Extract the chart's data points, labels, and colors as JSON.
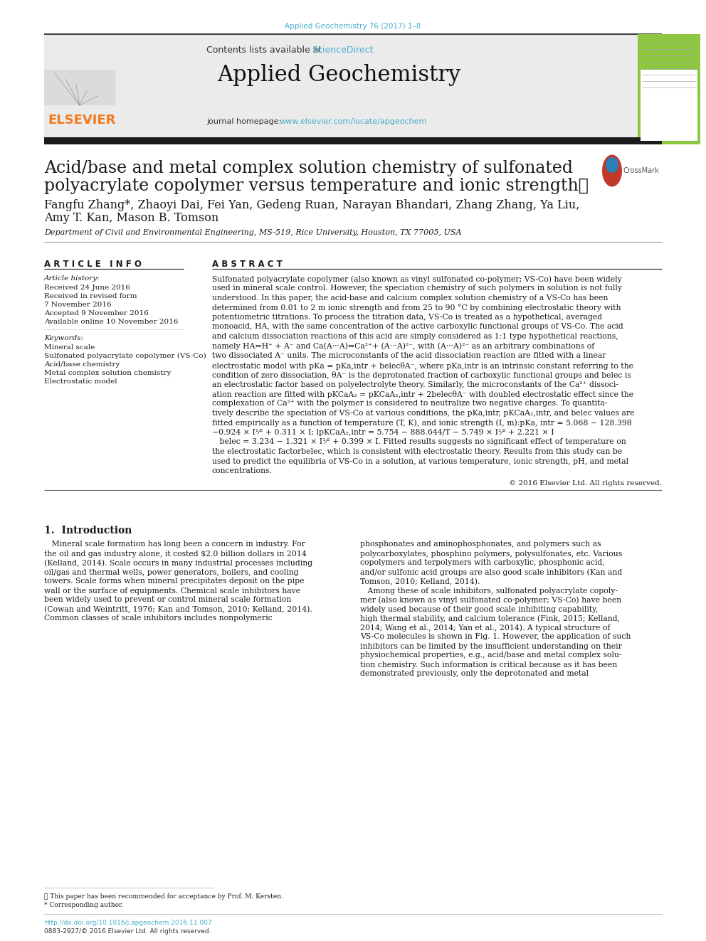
{
  "page_bg": "#ffffff",
  "top_citation": "Applied Geochemistry 76 (2017) 1–8",
  "top_citation_color": "#4AADCF",
  "journal_name": "Applied Geochemistry",
  "science_direct_color": "#4AADCF",
  "elsevier_orange": "#F47920",
  "header_bg": "#EBEBEB",
  "dark_bar": "#1A1A1A",
  "green_bar": "#8DC63F",
  "paper_title_line1": "Acid/base and metal complex solution chemistry of sulfonated",
  "paper_title_line2": "polyacrylate copolymer versus temperature and ionic strength★",
  "authors_line1": "Fangfu Zhang*, Zhaoyi Dai, Fei Yan, Gedeng Ruan, Narayan Bhandari, Zhang Zhang, Ya Liu,",
  "authors_line2": "Amy T. Kan, Mason B. Tomson",
  "affiliation": "Department of Civil and Environmental Engineering, MS-519, Rice University, Houston, TX 77005, USA",
  "article_info_title": "A R T I C L E   I N F O",
  "abstract_title": "A B S T R A C T",
  "article_history_title": "Article history:",
  "article_history": [
    "Received 24 June 2016",
    "Received in revised form",
    "7 November 2016",
    "Accepted 9 November 2016",
    "Available online 10 November 2016"
  ],
  "keywords_title": "Keywords:",
  "keywords": [
    "Mineral scale",
    "Sulfonated polyacrylate copolymer (VS-Co)",
    "Acid/base chemistry",
    "Metal complex solution chemistry",
    "Electrostatic model"
  ],
  "abstract_lines": [
    "Sulfonated polyacrylate copolymer (also known as vinyl sulfonated co-polymer; VS-Co) have been widely",
    "used in mineral scale control. However, the speciation chemistry of such polymers in solution is not fully",
    "understood. In this paper, the acid-base and calcium complex solution chemistry of a VS-Co has been",
    "determined from 0.01 to 2 m ionic strength and from 25 to 90 °C by combining electrostatic theory with",
    "potentiometric titrations. To process the titration data, VS-Co is treated as a hypothetical, averaged",
    "monoacid, HA, with the same concentration of the active carboxylic functional groups of VS-Co. The acid",
    "and calcium dissociation reactions of this acid are simply considered as 1:1 type hypothetical reactions,",
    "namely HA⇔H⁺ + A⁻ and Ca(A···A)⇔Ca²⁺+ (A···A)²⁻, with (A···A)²⁻ as an arbitrary combinations of",
    "two dissociated A⁻ units. The microconstants of the acid dissociation reaction are fitted with a linear",
    "electrostatic model with pKa = pKa,intr + belecθA⁻, where pKa,intr is an intrinsic constant referring to the",
    "condition of zero dissociation, θA⁻ is the deprotonated fraction of carboxylic functional groups and belec is",
    "an electrostatic factor based on polyelectrolyte theory. Similarly, the microconstants of the Ca²⁺ dissoci-",
    "ation reaction are fitted with pKCaA₂ = pKCaA₂,intr + 2belecθA⁻ with doubled electrostatic effect since the",
    "complexation of Ca²⁺ with the polymer is considered to neutralize two negative charges. To quantita-",
    "tively describe the speciation of VS-Co at various conditions, the pKa,intr, pKCaA₂,intr, and belec values are",
    "fitted empirically as a function of temperature (T, K), and ionic strength (I, m):pKa, intr = 5.068 − 128.398",
    "−0.924 × I¹⁄² + 0.311 × I; lpKCaA₂,intr = 5.754 − 888.644/T − 5.749 × I¹⁄² + 2.221 × I",
    "   belec = 3.234 − 1.321 × I¹⁄² + 0.399 × I. Fitted results suggests no significant effect of temperature on",
    "the electrostatic factorbelec, which is consistent with electrostatic theory. Results from this study can be",
    "used to predict the equilibria of VS-Co in a solution, at various temperature, ionic strength, pH, and metal",
    "concentrations."
  ],
  "copyright": "© 2016 Elsevier Ltd. All rights reserved.",
  "intro_title": "1.  Introduction",
  "intro_col1_lines": [
    "   Mineral scale formation has long been a concern in industry. For",
    "the oil and gas industry alone, it costed $2.0 billion dollars in 2014",
    "(Kelland, 2014). Scale occurs in many industrial processes including",
    "oil/gas and thermal wells, power generators, boilers, and cooling",
    "towers. Scale forms when mineral precipitates deposit on the pipe",
    "wall or the surface of equipments. Chemical scale inhibitors have",
    "been widely used to prevent or control mineral scale formation",
    "(Cowan and Weintritt, 1976; Kan and Tomson, 2010; Kelland, 2014).",
    "Common classes of scale inhibitors includes nonpolymeric"
  ],
  "intro_col2_lines": [
    "phosphonates and aminophosphonates, and polymers such as",
    "polycarboxylates, phosphino polymers, polysulfonates, etc. Various",
    "copolymers and terpolymers with carboxylic, phosphonic acid,",
    "and/or sulfonic acid groups are also good scale inhibitors (Kan and",
    "Tomson, 2010; Kelland, 2014).",
    "   Among these of scale inhibitors, sulfonated polyacrylate copoly-",
    "mer (also known as vinyl sulfonated co-polymer; VS-Co) have been",
    "widely used because of their good scale inhibiting capability,",
    "high thermal stability, and calcium tolerance (Fink, 2015; Kelland,",
    "2014; Wang et al., 2014; Yan et al., 2014). A typical structure of",
    "VS-Co molecules is shown in Fig. 1. However, the application of such",
    "inhibitors can be limited by the insufficient understanding on their",
    "physiochemical properties, e.g., acid/base and metal complex solu-",
    "tion chemistry. Such information is critical because as it has been",
    "demonstrated previously, only the deprotonated and metal"
  ],
  "footnote1": "★ This paper has been recommended for acceptance by Prof. M. Kersten.",
  "footnote2": "* Corresponding author.",
  "doi_text": "http://dx.doi.org/10.1016/j.apgeochem.2016.11.007",
  "issn_text": "0883-2927/© 2016 Elsevier Ltd. All rights reserved."
}
